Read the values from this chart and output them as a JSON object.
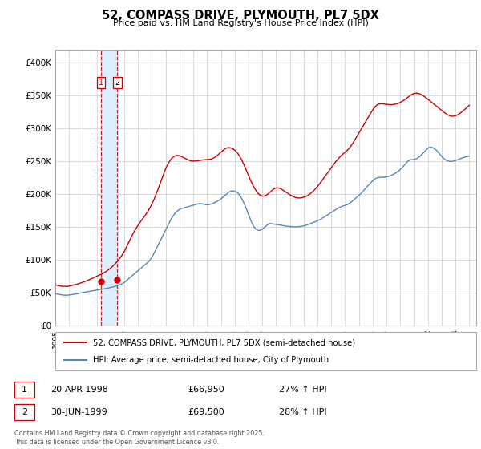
{
  "title": "52, COMPASS DRIVE, PLYMOUTH, PL7 5DX",
  "subtitle": "Price paid vs. HM Land Registry's House Price Index (HPI)",
  "legend_line1": "52, COMPASS DRIVE, PLYMOUTH, PL7 5DX (semi-detached house)",
  "legend_line2": "HPI: Average price, semi-detached house, City of Plymouth",
  "footer": "Contains HM Land Registry data © Crown copyright and database right 2025.\nThis data is licensed under the Open Government Licence v3.0.",
  "transaction1_num": "1",
  "transaction1_date": "20-APR-1998",
  "transaction1_price": "£66,950",
  "transaction1_hpi": "27% ↑ HPI",
  "transaction2_num": "2",
  "transaction2_date": "30-JUN-1999",
  "transaction2_price": "£69,500",
  "transaction2_hpi": "28% ↑ HPI",
  "red_color": "#cc0000",
  "blue_color": "#5588bb",
  "vline_color": "#cc0000",
  "shade_color": "#ddeeff",
  "grid_color": "#cccccc",
  "ylim": [
    0,
    420000
  ],
  "yticks": [
    0,
    50000,
    100000,
    150000,
    200000,
    250000,
    300000,
    350000,
    400000
  ],
  "xlim_start": 1995.0,
  "xlim_end": 2025.5,
  "transaction1_year": 1998.29,
  "transaction1_price_val": 66950,
  "transaction2_year": 1999.5,
  "transaction2_price_val": 69500,
  "hpi_months": [
    1995.0,
    1995.083,
    1995.167,
    1995.25,
    1995.333,
    1995.417,
    1995.5,
    1995.583,
    1995.667,
    1995.75,
    1995.833,
    1995.917,
    1996.0,
    1996.083,
    1996.167,
    1996.25,
    1996.333,
    1996.417,
    1996.5,
    1996.583,
    1996.667,
    1996.75,
    1996.833,
    1996.917,
    1997.0,
    1997.083,
    1997.167,
    1997.25,
    1997.333,
    1997.417,
    1997.5,
    1997.583,
    1997.667,
    1997.75,
    1997.833,
    1997.917,
    1998.0,
    1998.083,
    1998.167,
    1998.25,
    1998.333,
    1998.417,
    1998.5,
    1998.583,
    1998.667,
    1998.75,
    1998.833,
    1998.917,
    1999.0,
    1999.083,
    1999.167,
    1999.25,
    1999.333,
    1999.417,
    1999.5,
    1999.583,
    1999.667,
    1999.75,
    1999.833,
    1999.917,
    2000.0,
    2000.083,
    2000.167,
    2000.25,
    2000.333,
    2000.417,
    2000.5,
    2000.583,
    2000.667,
    2000.75,
    2000.833,
    2000.917,
    2001.0,
    2001.083,
    2001.167,
    2001.25,
    2001.333,
    2001.417,
    2001.5,
    2001.583,
    2001.667,
    2001.75,
    2001.833,
    2001.917,
    2002.0,
    2002.083,
    2002.167,
    2002.25,
    2002.333,
    2002.417,
    2002.5,
    2002.583,
    2002.667,
    2002.75,
    2002.833,
    2002.917,
    2003.0,
    2003.083,
    2003.167,
    2003.25,
    2003.333,
    2003.417,
    2003.5,
    2003.583,
    2003.667,
    2003.75,
    2003.833,
    2003.917,
    2004.0,
    2004.083,
    2004.167,
    2004.25,
    2004.333,
    2004.417,
    2004.5,
    2004.583,
    2004.667,
    2004.75,
    2004.833,
    2004.917,
    2005.0,
    2005.083,
    2005.167,
    2005.25,
    2005.333,
    2005.417,
    2005.5,
    2005.583,
    2005.667,
    2005.75,
    2005.833,
    2005.917,
    2006.0,
    2006.083,
    2006.167,
    2006.25,
    2006.333,
    2006.417,
    2006.5,
    2006.583,
    2006.667,
    2006.75,
    2006.833,
    2006.917,
    2007.0,
    2007.083,
    2007.167,
    2007.25,
    2007.333,
    2007.417,
    2007.5,
    2007.583,
    2007.667,
    2007.75,
    2007.833,
    2007.917,
    2008.0,
    2008.083,
    2008.167,
    2008.25,
    2008.333,
    2008.417,
    2008.5,
    2008.583,
    2008.667,
    2008.75,
    2008.833,
    2008.917,
    2009.0,
    2009.083,
    2009.167,
    2009.25,
    2009.333,
    2009.417,
    2009.5,
    2009.583,
    2009.667,
    2009.75,
    2009.833,
    2009.917,
    2010.0,
    2010.083,
    2010.167,
    2010.25,
    2010.333,
    2010.417,
    2010.5,
    2010.583,
    2010.667,
    2010.75,
    2010.833,
    2010.917,
    2011.0,
    2011.083,
    2011.167,
    2011.25,
    2011.333,
    2011.417,
    2011.5,
    2011.583,
    2011.667,
    2011.75,
    2011.833,
    2011.917,
    2012.0,
    2012.083,
    2012.167,
    2012.25,
    2012.333,
    2012.417,
    2012.5,
    2012.583,
    2012.667,
    2012.75,
    2012.833,
    2012.917,
    2013.0,
    2013.083,
    2013.167,
    2013.25,
    2013.333,
    2013.417,
    2013.5,
    2013.583,
    2013.667,
    2013.75,
    2013.833,
    2013.917,
    2014.0,
    2014.083,
    2014.167,
    2014.25,
    2014.333,
    2014.417,
    2014.5,
    2014.583,
    2014.667,
    2014.75,
    2014.833,
    2014.917,
    2015.0,
    2015.083,
    2015.167,
    2015.25,
    2015.333,
    2015.417,
    2015.5,
    2015.583,
    2015.667,
    2015.75,
    2015.833,
    2015.917,
    2016.0,
    2016.083,
    2016.167,
    2016.25,
    2016.333,
    2016.417,
    2016.5,
    2016.583,
    2016.667,
    2016.75,
    2016.833,
    2016.917,
    2017.0,
    2017.083,
    2017.167,
    2017.25,
    2017.333,
    2017.417,
    2017.5,
    2017.583,
    2017.667,
    2017.75,
    2017.833,
    2017.917,
    2018.0,
    2018.083,
    2018.167,
    2018.25,
    2018.333,
    2018.417,
    2018.5,
    2018.583,
    2018.667,
    2018.75,
    2018.833,
    2018.917,
    2019.0,
    2019.083,
    2019.167,
    2019.25,
    2019.333,
    2019.417,
    2019.5,
    2019.583,
    2019.667,
    2019.75,
    2019.833,
    2019.917,
    2020.0,
    2020.083,
    2020.167,
    2020.25,
    2020.333,
    2020.417,
    2020.5,
    2020.583,
    2020.667,
    2020.75,
    2020.833,
    2020.917,
    2021.0,
    2021.083,
    2021.167,
    2021.25,
    2021.333,
    2021.417,
    2021.5,
    2021.583,
    2021.667,
    2021.75,
    2021.833,
    2021.917,
    2022.0,
    2022.083,
    2022.167,
    2022.25,
    2022.333,
    2022.417,
    2022.5,
    2022.583,
    2022.667,
    2022.75,
    2022.833,
    2022.917,
    2023.0,
    2023.083,
    2023.167,
    2023.25,
    2023.333,
    2023.417,
    2023.5,
    2023.583,
    2023.667,
    2023.75,
    2023.833,
    2023.917,
    2024.0,
    2024.083,
    2024.167,
    2024.25,
    2024.333,
    2024.417,
    2024.5,
    2024.583,
    2024.667,
    2024.75,
    2024.833,
    2024.917,
    2025.0
  ],
  "hpi_values": [
    48500,
    48200,
    47900,
    47500,
    47100,
    46800,
    46500,
    46300,
    46200,
    46100,
    46000,
    46200,
    46500,
    46800,
    47100,
    47400,
    47600,
    47800,
    48000,
    48400,
    48800,
    49200,
    49600,
    49900,
    50200,
    50500,
    50800,
    51100,
    51400,
    51700,
    52000,
    52300,
    52600,
    52900,
    53200,
    53500,
    53800,
    54100,
    54400,
    54700,
    55000,
    55300,
    55600,
    55900,
    56200,
    56600,
    57000,
    57400,
    57800,
    58200,
    58600,
    59000,
    59500,
    60000,
    60600,
    61200,
    62000,
    62800,
    63600,
    64500,
    65500,
    67000,
    68500,
    70000,
    71500,
    73000,
    74500,
    76000,
    77500,
    79000,
    80500,
    82000,
    83500,
    85000,
    86500,
    88000,
    89500,
    91000,
    92500,
    94000,
    95500,
    97000,
    99000,
    101500,
    104000,
    107000,
    110500,
    114000,
    117500,
    121000,
    124500,
    128000,
    131500,
    135000,
    138500,
    142000,
    145500,
    149000,
    152500,
    156000,
    159500,
    162500,
    165500,
    168000,
    170500,
    172500,
    174000,
    175500,
    176500,
    177500,
    178000,
    178500,
    179000,
    179500,
    180000,
    180500,
    181000,
    181500,
    182000,
    182500,
    183000,
    183500,
    184000,
    184500,
    185000,
    185200,
    185400,
    185200,
    185000,
    184600,
    184200,
    183800,
    183500,
    183700,
    184000,
    184500,
    185000,
    185800,
    186600,
    187400,
    188200,
    189000,
    190000,
    191200,
    192500,
    194000,
    195500,
    197000,
    198500,
    200000,
    201500,
    202800,
    203800,
    204500,
    204600,
    204500,
    204200,
    203500,
    202500,
    201000,
    199000,
    196500,
    193500,
    190000,
    186500,
    182500,
    178000,
    173500,
    169000,
    164500,
    160000,
    156000,
    152500,
    149500,
    147500,
    146000,
    145000,
    144500,
    144800,
    145500,
    146500,
    148000,
    149500,
    151000,
    152500,
    153800,
    154800,
    155200,
    155000,
    154500,
    154200,
    154000,
    153800,
    153600,
    153300,
    153000,
    152600,
    152200,
    151900,
    151600,
    151400,
    151200,
    151000,
    150800,
    150600,
    150400,
    150300,
    150200,
    150100,
    150000,
    150100,
    150200,
    150400,
    150600,
    150900,
    151200,
    151600,
    152000,
    152500,
    153100,
    153700,
    154400,
    155100,
    155800,
    156500,
    157200,
    157900,
    158600,
    159400,
    160200,
    161000,
    162000,
    163000,
    164100,
    165200,
    166300,
    167400,
    168500,
    169600,
    170700,
    171800,
    173000,
    174200,
    175400,
    176600,
    177700,
    178700,
    179600,
    180400,
    181100,
    181700,
    182200,
    182700,
    183300,
    184000,
    185000,
    186100,
    187400,
    188800,
    190300,
    191800,
    193300,
    194800,
    196300,
    197800,
    199500,
    201300,
    203200,
    205200,
    207200,
    209200,
    211100,
    213000,
    214800,
    216600,
    218400,
    220200,
    221800,
    223100,
    224100,
    224700,
    225100,
    225300,
    225400,
    225400,
    225500,
    225600,
    225800,
    226100,
    226500,
    227000,
    227600,
    228300,
    229100,
    230000,
    231000,
    232100,
    233300,
    234600,
    235900,
    237300,
    239000,
    241000,
    243000,
    245000,
    247000,
    249000,
    250500,
    251500,
    252000,
    252300,
    252500,
    252600,
    253000,
    253700,
    254700,
    255900,
    257300,
    258900,
    260700,
    262600,
    264500,
    266400,
    268200,
    269700,
    270800,
    271300,
    271200,
    270600,
    269700,
    268600,
    267200,
    265500,
    263500,
    261400,
    259300,
    257200,
    255300,
    253700,
    252400,
    251300,
    250500,
    250000,
    249700,
    249600,
    249700,
    250000,
    250400,
    250900,
    251500,
    252200,
    252900,
    253600,
    254300,
    255000,
    255600,
    256200,
    256700,
    257100,
    257400,
    257600
  ],
  "price_values": [
    62000,
    61500,
    61000,
    60500,
    60200,
    60000,
    59800,
    59700,
    59600,
    59500,
    59400,
    59600,
    60000,
    60400,
    60800,
    61200,
    61600,
    62000,
    62400,
    62900,
    63400,
    64000,
    64600,
    65200,
    65800,
    66400,
    67100,
    67800,
    68500,
    69200,
    70000,
    70800,
    71600,
    72400,
    73200,
    74000,
    74800,
    75600,
    76400,
    77200,
    78100,
    79000,
    80000,
    81000,
    82000,
    83200,
    84400,
    85800,
    87200,
    88700,
    90300,
    92000,
    93800,
    95700,
    97700,
    99800,
    102000,
    104400,
    107000,
    109800,
    112800,
    116200,
    119800,
    123500,
    127200,
    130800,
    134300,
    137700,
    141000,
    144200,
    147200,
    150000,
    152700,
    155300,
    157800,
    160200,
    162500,
    164900,
    167300,
    169800,
    172400,
    175100,
    178100,
    181300,
    184800,
    188600,
    192600,
    196800,
    201200,
    205800,
    210600,
    215500,
    220400,
    225300,
    230000,
    234500,
    238700,
    242500,
    245900,
    248900,
    251500,
    253700,
    255500,
    256900,
    257900,
    258500,
    258700,
    258600,
    258200,
    257600,
    256800,
    255900,
    255000,
    254100,
    253200,
    252400,
    251600,
    251000,
    250500,
    250200,
    250100,
    250100,
    250200,
    250400,
    250700,
    251000,
    251300,
    251600,
    251800,
    252000,
    252200,
    252300,
    252400,
    252500,
    252700,
    253000,
    253500,
    254200,
    255100,
    256200,
    257500,
    258900,
    260500,
    262100,
    263700,
    265300,
    266800,
    268100,
    269200,
    270000,
    270500,
    270600,
    270400,
    269800,
    269000,
    268000,
    266800,
    265200,
    263300,
    261000,
    258400,
    255400,
    252100,
    248500,
    244700,
    240700,
    236600,
    232400,
    228200,
    224100,
    220100,
    216300,
    212800,
    209500,
    206600,
    204000,
    201800,
    200000,
    198600,
    197600,
    197100,
    197000,
    197300,
    197900,
    198900,
    200200,
    201700,
    203300,
    204900,
    206400,
    207700,
    208700,
    209300,
    209500,
    209300,
    208800,
    208000,
    207000,
    205900,
    204700,
    203500,
    202300,
    201100,
    200000,
    198900,
    197900,
    196900,
    196100,
    195400,
    194800,
    194400,
    194100,
    194000,
    194100,
    194300,
    194700,
    195200,
    195800,
    196500,
    197400,
    198400,
    199600,
    200900,
    202400,
    204000,
    205700,
    207500,
    209500,
    211600,
    213800,
    216100,
    218500,
    220900,
    223400,
    225800,
    228200,
    230600,
    233000,
    235400,
    237800,
    240200,
    242700,
    245100,
    247400,
    249600,
    251700,
    253700,
    255600,
    257400,
    259100,
    260700,
    262200,
    263600,
    265100,
    266700,
    268500,
    270600,
    272900,
    275500,
    278200,
    281100,
    284000,
    286900,
    289800,
    292700,
    295600,
    298600,
    301600,
    304600,
    307600,
    310600,
    313600,
    316600,
    319500,
    322400,
    325200,
    328000,
    330500,
    332700,
    334500,
    335800,
    336600,
    337100,
    337300,
    337300,
    337200,
    337000,
    336700,
    336400,
    336200,
    336000,
    335900,
    335900,
    336000,
    336200,
    336500,
    336900,
    337400,
    338000,
    338700,
    339500,
    340400,
    341400,
    342500,
    343700,
    345000,
    346400,
    347800,
    349100,
    350300,
    351400,
    352300,
    352900,
    353300,
    353400,
    353300,
    352900,
    352300,
    351500,
    350500,
    349400,
    348200,
    346900,
    345600,
    344200,
    342800,
    341400,
    340000,
    338600,
    337200,
    335800,
    334400,
    333000,
    331600,
    330200,
    328700,
    327200,
    325700,
    324300,
    323000,
    321800,
    320700,
    319800,
    319100,
    318600,
    318300,
    318300,
    318600,
    319100,
    319800,
    320700,
    321800,
    323000,
    324300,
    325700,
    327200,
    328700,
    330300,
    331900,
    333400,
    335000
  ]
}
